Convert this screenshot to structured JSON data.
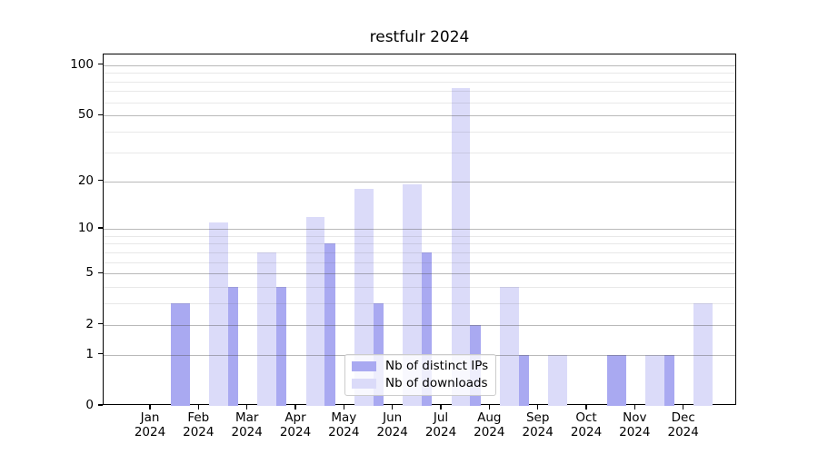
{
  "chart_data": {
    "type": "bar",
    "title": "restfulr 2024",
    "categories": [
      "Jan",
      "Feb",
      "Mar",
      "Apr",
      "May",
      "Jun",
      "Jul",
      "Aug",
      "Sep",
      "Oct",
      "Nov",
      "Dec"
    ],
    "x_year_label": "2024",
    "series": [
      {
        "name": "Nb of distinct IPs",
        "color": "#a9a9f1",
        "values": [
          0,
          3,
          4,
          4,
          8,
          3,
          7,
          2,
          1,
          0,
          1,
          1
        ]
      },
      {
        "name": "Nb of downloads",
        "color": "#dbdbf9",
        "values": [
          0,
          11,
          7,
          12,
          18,
          19,
          73,
          4,
          1,
          0,
          1,
          3
        ]
      }
    ],
    "y_axis": {
      "scale": "log1p",
      "ticks": [
        0,
        1,
        2,
        5,
        10,
        20,
        50,
        100
      ],
      "minor_ticks": [
        3,
        4,
        6,
        7,
        8,
        9,
        30,
        40,
        60,
        70,
        80,
        90
      ],
      "range_max": 115
    },
    "grid": true,
    "legend_position": "lower center",
    "colors": {
      "spine": "#000000",
      "background": "#ffffff",
      "major_grid": "#c3c3c3",
      "minor_grid": "#ebebeb"
    }
  }
}
